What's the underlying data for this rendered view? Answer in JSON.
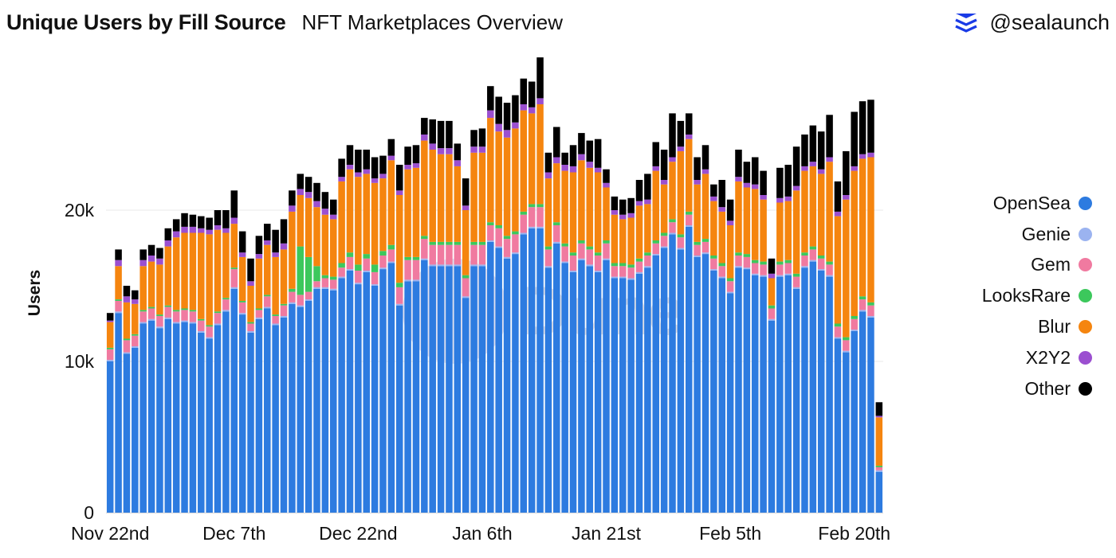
{
  "header": {
    "title": "Unique Users by Fill Source",
    "subtitle": "NFT Marketplaces Overview",
    "brand": "@sealaunch"
  },
  "watermark": "Dune",
  "chart_data": {
    "type": "bar",
    "stacked": true,
    "ylabel": "Users",
    "xlabel": "",
    "ylim": [
      0,
      30000
    ],
    "yticks": [
      0,
      10000,
      20000
    ],
    "ytick_labels": [
      "0",
      "10k",
      "20k"
    ],
    "grid": true,
    "legend_position": "right",
    "x_start": "2022-11-22",
    "x_ticks": [
      {
        "index": 0,
        "label": "Nov 22nd"
      },
      {
        "index": 15,
        "label": "Dec 7th"
      },
      {
        "index": 30,
        "label": "Dec 22nd"
      },
      {
        "index": 45,
        "label": "Jan 6th"
      },
      {
        "index": 60,
        "label": "Jan 21st"
      },
      {
        "index": 75,
        "label": "Feb 5th"
      },
      {
        "index": 90,
        "label": "Feb 20th"
      }
    ],
    "series": [
      {
        "name": "OpenSea",
        "color": "#2d7be0",
        "values": [
          10000,
          13200,
          10500,
          10900,
          12500,
          12700,
          12200,
          12800,
          12500,
          12600,
          12500,
          11900,
          11500,
          12400,
          13300,
          14800,
          13100,
          11900,
          12800,
          13500,
          12400,
          12900,
          13800,
          13600,
          14000,
          14800,
          14800,
          14700,
          15500,
          16000,
          15100,
          15900,
          15000,
          16100,
          16500,
          13700,
          15300,
          15300,
          16700,
          16300,
          16300,
          16300,
          16300,
          14200,
          16300,
          16300,
          17900,
          17500,
          16800,
          17100,
          18400,
          18800,
          18800,
          16200,
          17800,
          16500,
          15900,
          16700,
          16300,
          15900,
          16700,
          15500,
          15500,
          15400,
          15800,
          16200,
          17000,
          17500,
          18400,
          17400,
          18900,
          16900,
          17100,
          16000,
          15500,
          14500,
          16200,
          16100,
          15700,
          15600,
          12700,
          15600,
          15700,
          14800,
          16200,
          16600,
          16000,
          15600,
          11500,
          10600,
          12000,
          13300,
          12900,
          2700
        ]
      },
      {
        "name": "Genie",
        "color": "#9bb3f0",
        "values": [
          100,
          100,
          100,
          100,
          100,
          100,
          100,
          100,
          100,
          100,
          100,
          100,
          100,
          100,
          100,
          100,
          100,
          100,
          100,
          100,
          100,
          100,
          100,
          100,
          100,
          100,
          100,
          100,
          100,
          100,
          100,
          100,
          100,
          100,
          100,
          100,
          100,
          100,
          100,
          100,
          100,
          100,
          100,
          100,
          100,
          100,
          100,
          100,
          100,
          100,
          100,
          100,
          100,
          100,
          100,
          100,
          100,
          100,
          100,
          100,
          100,
          100,
          100,
          100,
          100,
          100,
          100,
          100,
          100,
          100,
          100,
          100,
          100,
          100,
          100,
          100,
          100,
          100,
          100,
          100,
          100,
          100,
          100,
          100,
          100,
          100,
          100,
          100,
          100,
          100,
          100,
          100,
          100,
          100
        ]
      },
      {
        "name": "Gem",
        "color": "#f07aa0",
        "values": [
          700,
          700,
          800,
          700,
          700,
          700,
          700,
          700,
          700,
          700,
          700,
          700,
          700,
          700,
          700,
          1200,
          700,
          500,
          500,
          700,
          500,
          700,
          700,
          700,
          500,
          400,
          600,
          600,
          600,
          800,
          800,
          800,
          800,
          800,
          800,
          1100,
          1300,
          1300,
          1300,
          1300,
          1300,
          1300,
          1300,
          1200,
          1300,
          1300,
          1000,
          1200,
          1200,
          1200,
          1200,
          1300,
          1300,
          1100,
          1100,
          1000,
          1000,
          1000,
          1000,
          1000,
          1000,
          700,
          700,
          700,
          700,
          700,
          700,
          700,
          700,
          700,
          700,
          700,
          700,
          700,
          700,
          700,
          700,
          700,
          700,
          700,
          700,
          700,
          700,
          700,
          700,
          700,
          700,
          700,
          700,
          700,
          700,
          700,
          700,
          200
        ]
      },
      {
        "name": "LooksRare",
        "color": "#3cc85c",
        "values": [
          100,
          100,
          100,
          100,
          100,
          100,
          100,
          100,
          100,
          100,
          100,
          100,
          100,
          100,
          100,
          100,
          100,
          100,
          100,
          100,
          100,
          100,
          200,
          3200,
          2300,
          1000,
          200,
          200,
          300,
          300,
          400,
          300,
          500,
          300,
          300,
          300,
          200,
          200,
          200,
          200,
          200,
          200,
          200,
          200,
          200,
          200,
          200,
          200,
          200,
          200,
          200,
          200,
          200,
          200,
          200,
          200,
          200,
          200,
          200,
          200,
          200,
          200,
          200,
          200,
          200,
          200,
          200,
          200,
          200,
          200,
          200,
          200,
          200,
          200,
          200,
          200,
          200,
          200,
          200,
          200,
          200,
          200,
          200,
          200,
          200,
          200,
          200,
          200,
          200,
          200,
          200,
          200,
          200,
          100
        ]
      },
      {
        "name": "Blur",
        "color": "#f5850f",
        "values": [
          1700,
          2200,
          2400,
          2000,
          2900,
          3000,
          3300,
          3900,
          4800,
          5000,
          5100,
          5700,
          6000,
          5400,
          4300,
          2900,
          2900,
          2400,
          3300,
          3300,
          3800,
          3600,
          5100,
          3400,
          3900,
          3900,
          4000,
          3800,
          5400,
          5500,
          5800,
          5300,
          5400,
          4800,
          5600,
          5800,
          5800,
          5900,
          6300,
          6100,
          5800,
          5800,
          5000,
          4300,
          5900,
          5900,
          6900,
          6200,
          6500,
          6800,
          6700,
          6000,
          6600,
          4500,
          3900,
          4800,
          5300,
          5300,
          5200,
          5300,
          3500,
          3200,
          2900,
          3100,
          3500,
          3200,
          4600,
          3200,
          3800,
          5500,
          4800,
          3800,
          4300,
          3600,
          3400,
          3500,
          4700,
          4400,
          4700,
          4100,
          1800,
          3900,
          3900,
          5500,
          5400,
          5300,
          5400,
          6600,
          7100,
          9100,
          9600,
          9100,
          9600,
          3200
        ]
      },
      {
        "name": "X2Y2",
        "color": "#9b4fd0",
        "values": [
          100,
          400,
          400,
          300,
          400,
          400,
          400,
          400,
          400,
          400,
          400,
          300,
          300,
          300,
          300,
          400,
          300,
          300,
          300,
          300,
          300,
          400,
          400,
          400,
          400,
          400,
          400,
          300,
          300,
          300,
          300,
          300,
          300,
          300,
          300,
          300,
          300,
          300,
          400,
          400,
          400,
          400,
          400,
          300,
          400,
          400,
          500,
          500,
          500,
          400,
          400,
          400,
          400,
          400,
          400,
          400,
          400,
          400,
          400,
          300,
          300,
          300,
          300,
          300,
          300,
          300,
          300,
          300,
          300,
          300,
          300,
          300,
          300,
          300,
          300,
          300,
          300,
          300,
          300,
          300,
          300,
          300,
          300,
          300,
          300,
          300,
          300,
          300,
          300,
          300,
          300,
          300,
          300,
          100
        ]
      },
      {
        "name": "Other",
        "color": "#000000",
        "values": [
          500,
          700,
          700,
          600,
          700,
          700,
          700,
          800,
          800,
          900,
          800,
          800,
          800,
          1000,
          1200,
          1800,
          1400,
          1500,
          1200,
          1100,
          1500,
          1600,
          1000,
          1000,
          1000,
          1200,
          1100,
          1000,
          1200,
          1300,
          1500,
          1300,
          1400,
          1200,
          1100,
          1700,
          1200,
          1200,
          1100,
          1600,
          1800,
          1800,
          1100,
          1800,
          1100,
          1200,
          1600,
          1800,
          1800,
          1800,
          1700,
          1700,
          2700,
          1300,
          2000,
          800,
          1400,
          1400,
          1400,
          1900,
          900,
          900,
          1000,
          1000,
          1400,
          1700,
          1600,
          2000,
          2900,
          1700,
          1400,
          1500,
          1600,
          800,
          1800,
          1400,
          1800,
          1400,
          1800,
          1600,
          1000,
          2000,
          2100,
          2600,
          2100,
          2400,
          2500,
          2800,
          2000,
          2900,
          3600,
          3500,
          3500,
          900
        ]
      }
    ]
  },
  "colors": {
    "grid": "#e8e8e8",
    "axis": "#d8d8d8",
    "text": "#111111",
    "brand": "#1a3be6"
  }
}
